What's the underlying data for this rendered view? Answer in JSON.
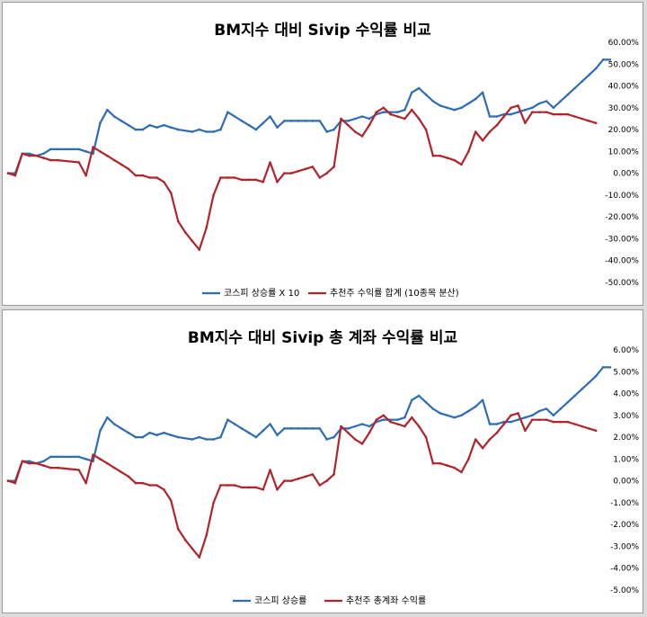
{
  "chart_data": [
    {
      "type": "line",
      "title": "BM지수 대비 Sivip 수익률 비교",
      "ylim": [
        -50,
        60
      ],
      "yticks": [
        "60.00%",
        "50.00%",
        "40.00%",
        "30.00%",
        "20.00%",
        "10.00%",
        "0.00%",
        "-10.00%",
        "-20.00%",
        "-30.00%",
        "-40.00%",
        "-50.00%"
      ],
      "x": [
        0,
        1,
        2,
        3,
        4,
        5,
        6,
        7,
        8,
        9,
        10,
        11,
        12,
        13,
        14,
        15,
        16,
        17,
        18,
        19,
        20,
        21,
        22,
        23,
        24,
        25,
        26,
        27,
        28,
        29,
        30,
        31,
        32,
        33,
        34,
        35,
        36,
        37,
        38,
        39,
        40,
        41,
        42,
        43,
        44,
        45,
        46,
        47,
        48,
        49,
        50,
        51,
        52,
        53,
        54,
        55,
        56,
        57,
        58,
        59,
        60,
        61,
        62,
        63,
        64,
        65,
        66,
        67,
        68,
        69,
        70,
        71,
        72,
        73,
        74,
        75,
        76,
        77,
        78,
        79,
        80,
        81,
        82,
        83,
        84,
        85,
        86,
        87,
        88,
        89,
        90,
        91,
        92,
        93,
        94,
        95,
        96,
        97,
        98,
        99,
        100,
        101,
        102,
        103,
        104,
        105,
        106,
        107,
        108,
        109,
        110,
        111,
        112,
        113,
        114,
        115,
        116,
        117,
        118,
        119,
        120,
        121,
        122,
        123,
        124,
        125,
        126,
        127,
        128,
        129,
        130,
        131,
        132,
        133,
        134,
        135,
        136,
        137,
        138,
        139,
        140,
        141,
        142,
        143,
        144,
        145,
        146,
        147,
        148,
        149,
        150,
        151,
        152,
        153,
        154,
        155,
        156,
        157,
        158,
        159,
        160,
        161,
        162,
        163,
        164,
        165,
        166,
        167,
        168,
        169,
        170,
        171,
        172,
        173,
        174,
        175,
        176,
        177,
        178,
        179,
        180,
        181,
        182,
        183,
        184,
        185,
        186,
        187,
        188,
        189,
        190,
        191,
        192,
        193,
        194,
        195,
        196,
        197,
        198,
        199,
        200,
        201,
        202,
        203,
        204,
        205,
        206,
        207,
        208,
        209,
        210,
        211,
        212,
        213,
        214,
        215,
        216,
        217,
        218,
        219,
        220,
        221,
        222,
        223,
        224,
        225,
        226,
        227,
        228,
        229,
        230,
        231,
        232,
        233,
        234,
        235,
        236,
        237,
        238,
        239,
        240,
        241,
        242,
        243,
        244,
        245,
        246,
        247,
        248,
        249,
        250,
        251,
        252,
        253,
        254,
        255,
        256,
        257,
        258,
        259,
        260,
        261,
        262,
        263,
        264,
        265,
        266,
        267,
        268,
        269,
        270,
        271,
        272,
        273,
        274,
        275,
        276,
        277,
        278,
        279,
        280,
        281,
        282,
        283,
        284,
        285,
        286,
        287,
        288,
        289,
        290,
        291,
        292,
        293,
        294,
        295,
        296,
        297,
        298,
        299,
        300,
        301,
        302,
        303,
        304,
        305,
        306,
        307,
        308,
        309,
        310,
        311,
        312,
        313,
        314,
        315,
        316,
        317,
        318,
        319,
        320,
        321,
        322,
        323,
        324,
        325,
        326,
        327,
        328,
        329,
        330,
        331,
        332,
        333,
        334,
        335,
        336,
        337,
        338,
        339,
        340,
        341,
        342,
        343,
        344,
        345,
        346,
        347,
        348,
        349,
        350
      ],
      "series": [
        {
          "name": "코스피 상승률 X 10",
          "color": "#2e6db4",
          "points": [
            [
              0,
              0
            ],
            [
              6,
              0
            ],
            [
              12,
              9
            ],
            [
              18,
              9
            ],
            [
              24,
              8
            ],
            [
              30,
              9
            ],
            [
              36,
              11
            ],
            [
              42,
              11
            ],
            [
              60,
              11
            ],
            [
              66,
              10
            ],
            [
              72,
              9
            ],
            [
              78,
              23
            ],
            [
              84,
              29
            ],
            [
              90,
              26
            ],
            [
              96,
              24
            ],
            [
              102,
              22
            ],
            [
              108,
              20
            ],
            [
              114,
              20
            ],
            [
              120,
              22
            ],
            [
              126,
              21
            ],
            [
              132,
              22
            ],
            [
              138,
              21
            ],
            [
              144,
              20
            ],
            [
              156,
              19
            ],
            [
              162,
              20
            ],
            [
              168,
              19
            ],
            [
              174,
              19
            ],
            [
              180,
              20
            ],
            [
              186,
              28
            ],
            [
              192,
              26
            ],
            [
              198,
              24
            ],
            [
              204,
              22
            ],
            [
              210,
              20
            ],
            [
              216,
              23
            ],
            [
              222,
              26
            ],
            [
              228,
              21
            ],
            [
              234,
              24
            ],
            [
              240,
              24
            ],
            [
              246,
              24
            ],
            [
              252,
              24
            ],
            [
              258,
              24
            ],
            [
              264,
              24
            ],
            [
              270,
              19
            ],
            [
              276,
              20
            ],
            [
              282,
              24
            ],
            [
              288,
              24
            ],
            [
              294,
              25
            ],
            [
              300,
              26
            ],
            [
              306,
              25
            ],
            [
              312,
              27
            ],
            [
              318,
              28
            ],
            [
              324,
              28
            ],
            [
              330,
              28
            ],
            [
              336,
              29
            ],
            [
              342,
              37
            ],
            [
              348,
              39
            ],
            [
              354,
              36
            ],
            [
              360,
              33
            ],
            [
              366,
              31
            ],
            [
              372,
              30
            ],
            [
              378,
              29
            ],
            [
              384,
              30
            ],
            [
              390,
              32
            ],
            [
              396,
              34
            ],
            [
              402,
              37
            ],
            [
              408,
              26
            ],
            [
              414,
              26
            ],
            [
              420,
              27
            ],
            [
              426,
              27
            ],
            [
              432,
              28
            ],
            [
              438,
              29
            ],
            [
              444,
              30
            ],
            [
              450,
              32
            ],
            [
              456,
              33
            ],
            [
              462,
              30
            ],
            [
              468,
              33
            ],
            [
              474,
              36
            ],
            [
              480,
              39
            ],
            [
              486,
              42
            ],
            [
              492,
              45
            ],
            [
              498,
              48
            ],
            [
              504,
              52
            ],
            [
              510,
              52
            ]
          ]
        },
        {
          "name": "추천주 수익률 합계 (10종목 분산)",
          "color": "#b0242b",
          "points": [
            [
              0,
              0
            ],
            [
              6,
              -1
            ],
            [
              12,
              9
            ],
            [
              18,
              8
            ],
            [
              24,
              8
            ],
            [
              30,
              7
            ],
            [
              36,
              6
            ],
            [
              42,
              6
            ],
            [
              60,
              5
            ],
            [
              66,
              -1
            ],
            [
              72,
              12
            ],
            [
              78,
              10
            ],
            [
              84,
              8
            ],
            [
              90,
              6
            ],
            [
              96,
              4
            ],
            [
              102,
              2
            ],
            [
              108,
              -1
            ],
            [
              114,
              -1
            ],
            [
              120,
              -2
            ],
            [
              126,
              -2
            ],
            [
              132,
              -4
            ],
            [
              138,
              -9
            ],
            [
              144,
              -22
            ],
            [
              150,
              -27
            ],
            [
              156,
              -31
            ],
            [
              162,
              -35
            ],
            [
              168,
              -25
            ],
            [
              174,
              -10
            ],
            [
              180,
              -2
            ],
            [
              186,
              -2
            ],
            [
              192,
              -2
            ],
            [
              198,
              -3
            ],
            [
              204,
              -3
            ],
            [
              210,
              -3
            ],
            [
              216,
              -4
            ],
            [
              222,
              5
            ],
            [
              228,
              -4
            ],
            [
              234,
              0
            ],
            [
              240,
              0
            ],
            [
              246,
              1
            ],
            [
              252,
              2
            ],
            [
              258,
              3
            ],
            [
              264,
              -2
            ],
            [
              270,
              0
            ],
            [
              276,
              3
            ],
            [
              282,
              25
            ],
            [
              288,
              22
            ],
            [
              294,
              19
            ],
            [
              300,
              17
            ],
            [
              306,
              22
            ],
            [
              312,
              28
            ],
            [
              318,
              30
            ],
            [
              324,
              27
            ],
            [
              330,
              26
            ],
            [
              336,
              25
            ],
            [
              342,
              29
            ],
            [
              348,
              25
            ],
            [
              354,
              20
            ],
            [
              360,
              8
            ],
            [
              366,
              8
            ],
            [
              372,
              7
            ],
            [
              378,
              6
            ],
            [
              384,
              4
            ],
            [
              390,
              10
            ],
            [
              396,
              19
            ],
            [
              402,
              15
            ],
            [
              408,
              19
            ],
            [
              414,
              22
            ],
            [
              420,
              26
            ],
            [
              426,
              30
            ],
            [
              432,
              31
            ],
            [
              438,
              23
            ],
            [
              444,
              28
            ],
            [
              450,
              28
            ],
            [
              456,
              28
            ],
            [
              462,
              27
            ],
            [
              468,
              27
            ],
            [
              474,
              27
            ],
            [
              480,
              26
            ],
            [
              486,
              25
            ],
            [
              492,
              24
            ],
            [
              498,
              23
            ]
          ]
        }
      ]
    },
    {
      "type": "line",
      "title": "BM지수 대비 Sivip 총 계좌 수익률 비교",
      "ylim": [
        -5,
        6
      ],
      "yticks": [
        "6.00%",
        "5.00%",
        "4.00%",
        "3.00%",
        "2.00%",
        "1.00%",
        "0.00%",
        "-1.00%",
        "-2.00%",
        "-3.00%",
        "-4.00%",
        "-5.00%"
      ],
      "series": [
        {
          "name": "코스피 상승률",
          "color": "#2e6db4"
        },
        {
          "name": "추천주 총계좌 수익률",
          "color": "#b0242b"
        }
      ]
    }
  ]
}
